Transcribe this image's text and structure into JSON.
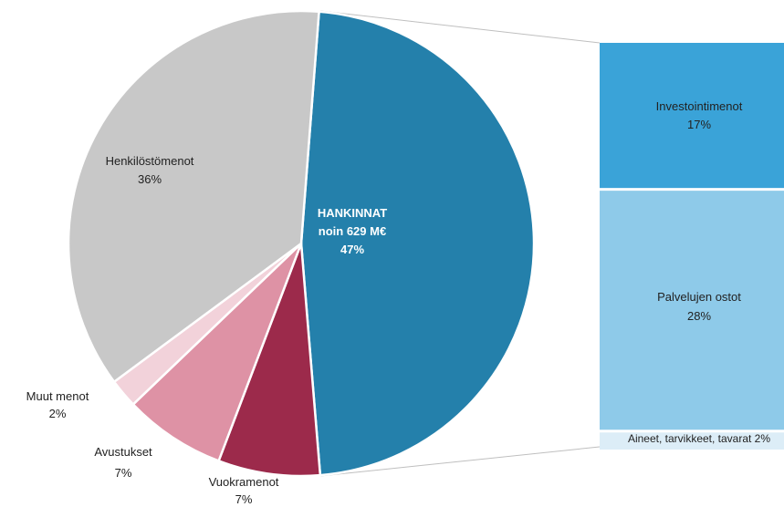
{
  "chart_data": {
    "type": "pie",
    "title": "",
    "center_label": {
      "line1": "HANKINNAT",
      "line2": "noin 629 M€",
      "line3": "47%"
    },
    "slices": [
      {
        "name": "Hankinnat",
        "label": "",
        "pct_label": "",
        "value": 47,
        "color": "#2480ab"
      },
      {
        "name": "Vuokramenot",
        "label": "Vuokramenot",
        "pct_label": "7%",
        "value": 7,
        "color": "#9c2a4b"
      },
      {
        "name": "Avustukset",
        "label": "Avustukset",
        "pct_label": "7%",
        "value": 7,
        "color": "#de92a5"
      },
      {
        "name": "Muut menot",
        "label": "Muut menot",
        "pct_label": "2%",
        "value": 2,
        "color": "#f2d2da"
      },
      {
        "name": "Henkilöstömenot",
        "label": "Henkilöstömenot",
        "pct_label": "36%",
        "value": 36,
        "color": "#c8c8c8"
      }
    ],
    "breakdown": [
      {
        "label": "Investointimenot",
        "pct_label": "17%",
        "value": 17,
        "color": "#3aa3d8"
      },
      {
        "label": "Palvelujen ostot",
        "pct_label": "28%",
        "value": 28,
        "color": "#8ecae9"
      },
      {
        "label": "Aineet, tarvikkeet, tavarat 2%",
        "pct_label": "",
        "value": 2,
        "color": "#dcedf7"
      }
    ]
  }
}
